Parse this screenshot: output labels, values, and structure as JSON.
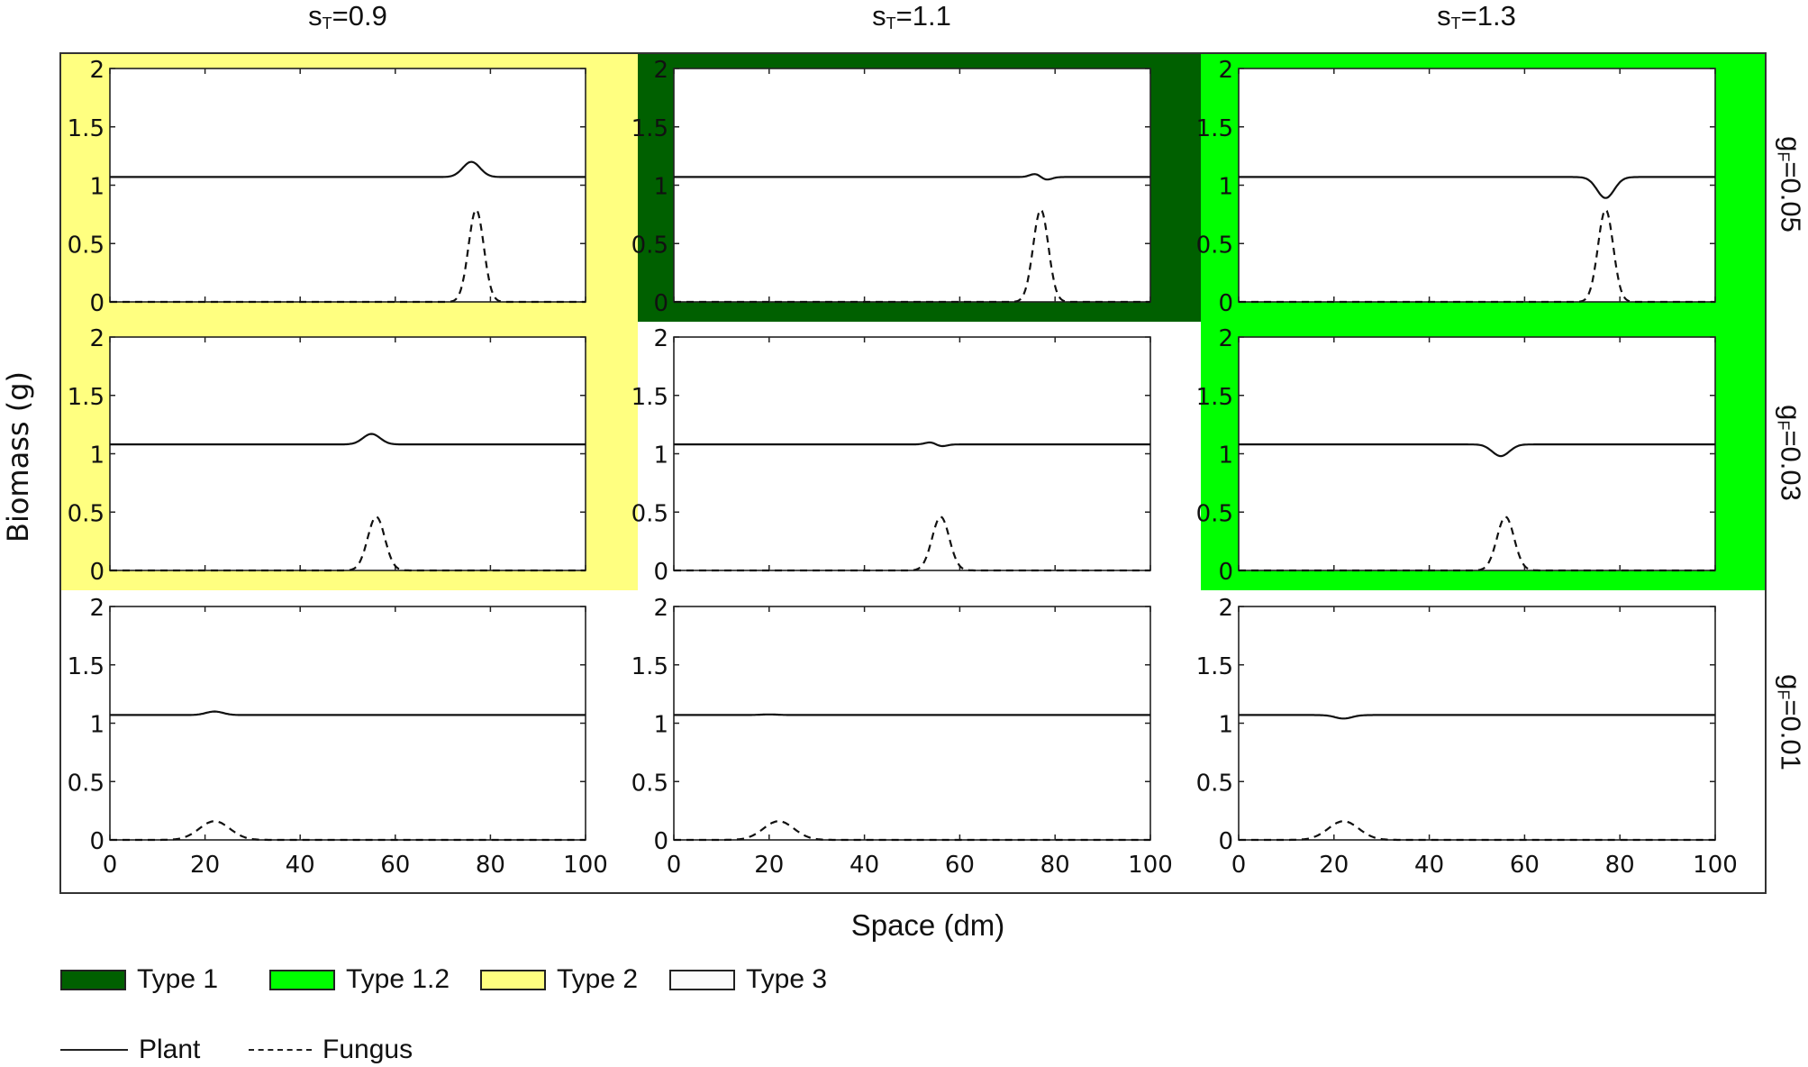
{
  "chart_data": {
    "type": "line",
    "layout": "3x3 small multiples",
    "column_headers": [
      {
        "base": "s",
        "sub": "T",
        "rest": "=0.9"
      },
      {
        "base": "s",
        "sub": "T",
        "rest": "=1.1"
      },
      {
        "base": "s",
        "sub": "T",
        "rest": "=1.3"
      }
    ],
    "row_headers": [
      {
        "base": "g",
        "sub": "F",
        "rest": "=0.05"
      },
      {
        "base": "g",
        "sub": "F",
        "rest": "=0.03"
      },
      {
        "base": "g",
        "sub": "F",
        "rest": "=0.01"
      }
    ],
    "xlabel": "Space (dm)",
    "ylabel": "Biomass (g)",
    "xlim": [
      0,
      100
    ],
    "ylim": [
      0,
      2
    ],
    "xticks": [
      "0",
      "20",
      "40",
      "60",
      "80",
      "100"
    ],
    "yticks": [
      "0",
      "0.5",
      "1",
      "1.5",
      "2"
    ],
    "grid": false,
    "series_names": [
      "Plant",
      "Fungus"
    ],
    "panels": [
      {
        "row": 0,
        "col": 0,
        "type_class": "Type 2",
        "plant_base": 1.07,
        "plant_peak_x": 76,
        "plant_peak_y": 1.2,
        "plant_shape": "bump",
        "fungus_peak_x": 77,
        "fungus_peak_y": 0.79,
        "fungus_width": 1.6
      },
      {
        "row": 0,
        "col": 1,
        "type_class": "Type 1",
        "plant_base": 1.07,
        "plant_peak_x": 76,
        "plant_peak_y": 1.1,
        "plant_shape": "wiggle",
        "fungus_peak_x": 77,
        "fungus_peak_y": 0.79,
        "fungus_width": 1.6
      },
      {
        "row": 0,
        "col": 2,
        "type_class": "Type 1.2",
        "plant_base": 1.07,
        "plant_peak_x": 77,
        "plant_peak_y": 0.89,
        "plant_shape": "dip",
        "fungus_peak_x": 77,
        "fungus_peak_y": 0.79,
        "fungus_width": 1.6
      },
      {
        "row": 1,
        "col": 0,
        "type_class": "Type 2",
        "plant_base": 1.08,
        "plant_peak_x": 55,
        "plant_peak_y": 1.17,
        "plant_shape": "bump",
        "fungus_peak_x": 56,
        "fungus_peak_y": 0.46,
        "fungus_width": 1.8
      },
      {
        "row": 1,
        "col": 1,
        "type_class": "Type 3",
        "plant_base": 1.08,
        "plant_peak_x": 54,
        "plant_peak_y": 1.1,
        "plant_shape": "wiggle",
        "fungus_peak_x": 56,
        "fungus_peak_y": 0.46,
        "fungus_width": 1.8
      },
      {
        "row": 1,
        "col": 2,
        "type_class": "Type 1.2",
        "plant_base": 1.08,
        "plant_peak_x": 55,
        "plant_peak_y": 0.98,
        "plant_shape": "dip",
        "fungus_peak_x": 56,
        "fungus_peak_y": 0.46,
        "fungus_width": 1.8
      },
      {
        "row": 2,
        "col": 0,
        "type_class": "Type 3",
        "plant_base": 1.07,
        "plant_peak_x": 22,
        "plant_peak_y": 1.1,
        "plant_shape": "bump",
        "fungus_peak_x": 22,
        "fungus_peak_y": 0.16,
        "fungus_width": 3.2
      },
      {
        "row": 2,
        "col": 1,
        "type_class": "Type 3",
        "plant_base": 1.07,
        "plant_peak_x": 20,
        "plant_peak_y": 1.075,
        "plant_shape": "flat",
        "fungus_peak_x": 22,
        "fungus_peak_y": 0.16,
        "fungus_width": 3.2
      },
      {
        "row": 2,
        "col": 2,
        "type_class": "Type 3",
        "plant_base": 1.07,
        "plant_peak_x": 22,
        "plant_peak_y": 1.04,
        "plant_shape": "dip",
        "fungus_peak_x": 22,
        "fungus_peak_y": 0.16,
        "fungus_width": 3.2
      }
    ],
    "legend": {
      "types": [
        {
          "label": "Type 1",
          "color": "#006000"
        },
        {
          "label": "Type 1.2",
          "color": "#00ff00"
        },
        {
          "label": "Type 2",
          "color": "#ffff80"
        },
        {
          "label": "Type 3",
          "color": "#ffffff"
        }
      ],
      "lines": [
        {
          "label": "Plant",
          "style": "solid"
        },
        {
          "label": "Fungus",
          "style": "dashed"
        }
      ]
    }
  }
}
